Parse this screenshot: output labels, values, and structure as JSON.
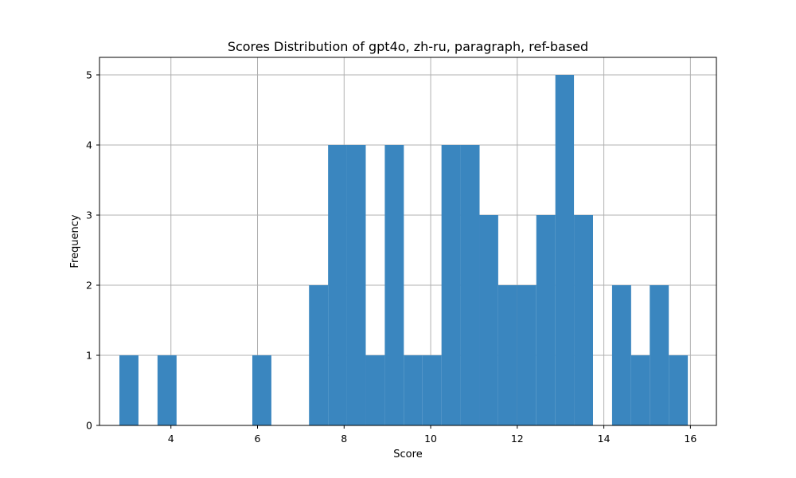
{
  "chart_data": {
    "type": "bar",
    "title": "Scores Distribution of gpt4o, zh-ru, paragraph, ref-based",
    "xlabel": "Score",
    "ylabel": "Frequency",
    "xlim": [
      2.35,
      16.6
    ],
    "ylim": [
      0,
      5.25
    ],
    "xticks": [
      4,
      6,
      8,
      10,
      12,
      14,
      16
    ],
    "yticks": [
      0,
      1,
      2,
      3,
      4,
      5
    ],
    "grid": true,
    "bar_color": "#3a86bf",
    "bins": [
      {
        "x0": 2.81,
        "x1": 3.25,
        "value": 1
      },
      {
        "x0": 3.69,
        "x1": 4.13,
        "value": 1
      },
      {
        "x0": 5.88,
        "x1": 6.32,
        "value": 1
      },
      {
        "x0": 7.19,
        "x1": 7.63,
        "value": 2
      },
      {
        "x0": 7.63,
        "x1": 8.06,
        "value": 4
      },
      {
        "x0": 8.06,
        "x1": 8.5,
        "value": 4
      },
      {
        "x0": 8.5,
        "x1": 8.94,
        "value": 1
      },
      {
        "x0": 8.94,
        "x1": 9.38,
        "value": 4
      },
      {
        "x0": 9.38,
        "x1": 9.81,
        "value": 1
      },
      {
        "x0": 9.81,
        "x1": 10.25,
        "value": 1
      },
      {
        "x0": 10.25,
        "x1": 10.69,
        "value": 4
      },
      {
        "x0": 10.69,
        "x1": 11.13,
        "value": 4
      },
      {
        "x0": 11.13,
        "x1": 11.56,
        "value": 3
      },
      {
        "x0": 11.56,
        "x1": 12.0,
        "value": 2
      },
      {
        "x0": 12.0,
        "x1": 12.44,
        "value": 2
      },
      {
        "x0": 12.44,
        "x1": 12.88,
        "value": 3
      },
      {
        "x0": 12.88,
        "x1": 13.31,
        "value": 5
      },
      {
        "x0": 13.31,
        "x1": 13.75,
        "value": 3
      },
      {
        "x0": 14.19,
        "x1": 14.63,
        "value": 2
      },
      {
        "x0": 14.63,
        "x1": 15.06,
        "value": 1
      },
      {
        "x0": 15.06,
        "x1": 15.5,
        "value": 2
      },
      {
        "x0": 15.5,
        "x1": 15.94,
        "value": 1
      }
    ]
  }
}
